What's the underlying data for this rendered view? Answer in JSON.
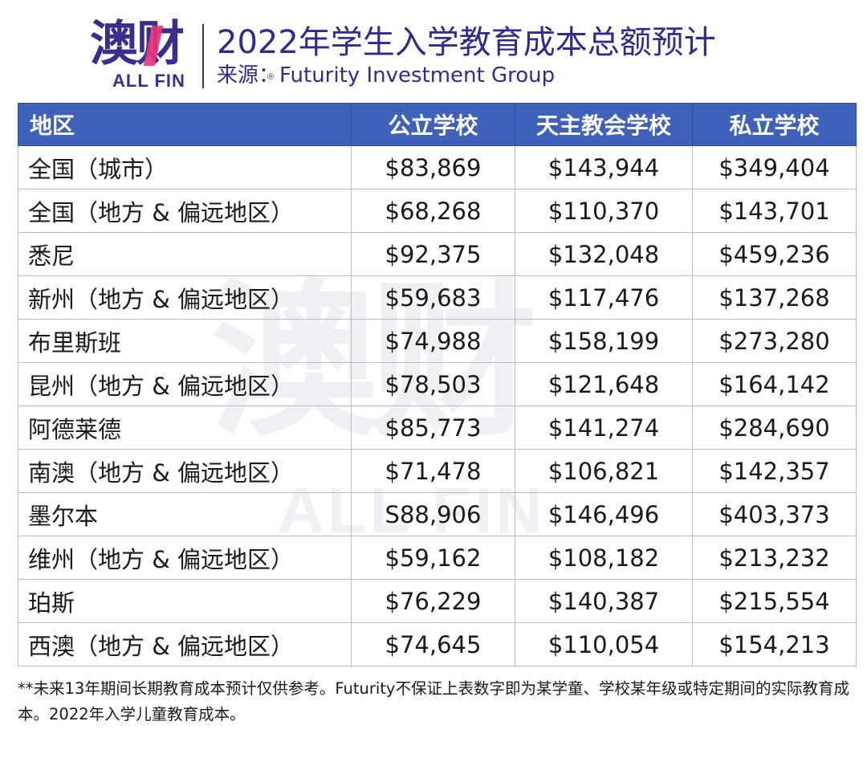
{
  "logo": {
    "chars": "澳财",
    "en": "ALL FIN",
    "reg": "®"
  },
  "header": {
    "title": "2022年学生入学教育成本总额预计",
    "subtitle": "来源：Futurity Investment Group"
  },
  "table": {
    "columns": [
      "地区",
      "公立学校",
      "天主教会学校",
      "私立学校"
    ],
    "rows": [
      [
        "全国（城市）",
        "$83,869",
        "$143,944",
        "$349,404"
      ],
      [
        "全国（地方 & 偏远地区）",
        "$68,268",
        "$110,370",
        "$143,701"
      ],
      [
        "悉尼",
        "$92,375",
        "$132,048",
        "$459,236"
      ],
      [
        "新州（地方 & 偏远地区）",
        "$59,683",
        "$117,476",
        "$137,268"
      ],
      [
        "布里斯班",
        "$74,988",
        "$158,199",
        "$273,280"
      ],
      [
        "昆州（地方 & 偏远地区）",
        "$78,503",
        "$121,648",
        "$164,142"
      ],
      [
        "阿德莱德",
        "$85,773",
        "$141,274",
        "$284,690"
      ],
      [
        "南澳（地方 & 偏远地区）",
        "$71,478",
        "$106,821",
        "$142,357"
      ],
      [
        "墨尔本",
        "S88,906",
        "$146,496",
        "$403,373"
      ],
      [
        "维州（地方 & 偏远地区）",
        "$59,162",
        "$108,182",
        "$213,232"
      ],
      [
        "珀斯",
        "$76,229",
        "$140,387",
        "$215,554"
      ],
      [
        "西澳（地方 & 偏远地区）",
        "$74,645",
        "$110,054",
        "$154,213"
      ]
    ]
  },
  "watermark": {
    "chars": "澳财",
    "en": "ALL FIN"
  },
  "footnote": "**未来13年期间长期教育成本预计仅供参考。Futurity不保证上表数字即为某学童、学校某年级或特定期间的实际教育成本。2022年入学儿童教育成本。",
  "colors": {
    "header_bg": "#3f61b9",
    "brand": "#2e2d8c",
    "accent": "#e6337a"
  }
}
